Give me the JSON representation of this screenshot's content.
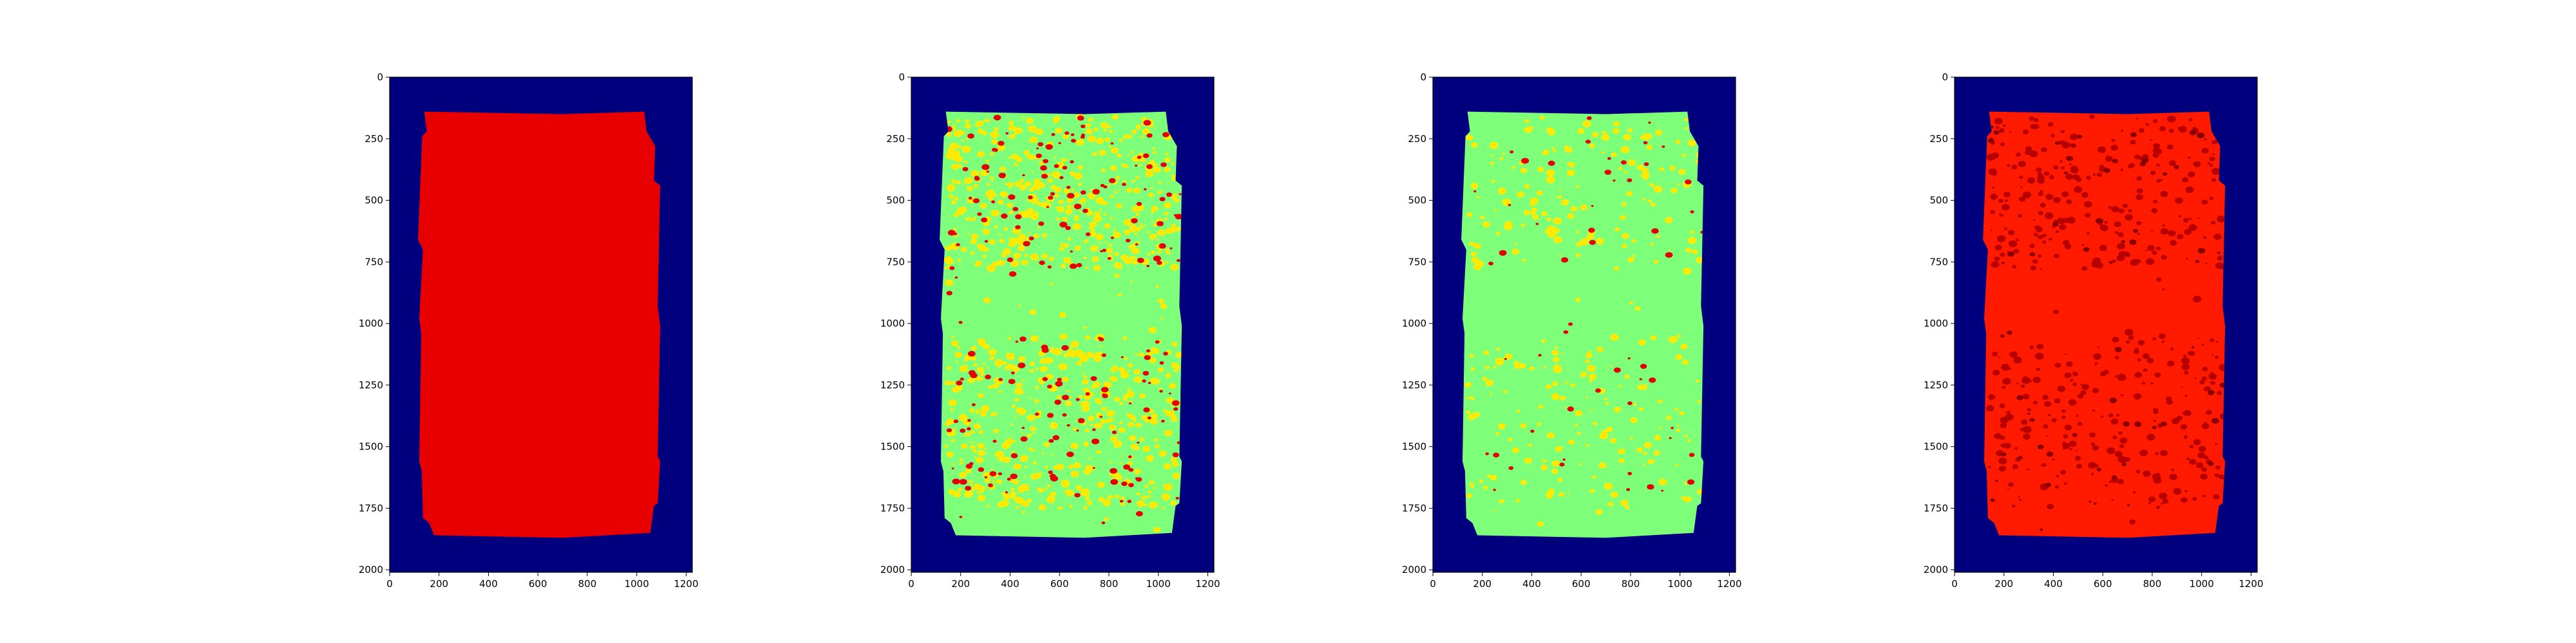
{
  "chart_data": [
    {
      "type": "heatmap",
      "panel": 1,
      "xlim": [
        0,
        1225
      ],
      "ylim": [
        2010,
        0
      ],
      "x_ticks": [
        "0",
        "200",
        "400",
        "600",
        "800",
        "1000",
        "1200"
      ],
      "y_ticks": [
        "0",
        "250",
        "500",
        "750",
        "1000",
        "1250",
        "1500",
        "1750",
        "2000"
      ],
      "background_color": "#00007f",
      "fill_color": "#e80000",
      "blob_color": "#d40000",
      "blob_density": 0,
      "spot_color": "#cc0000",
      "spot_density": 0
    },
    {
      "type": "heatmap",
      "panel": 2,
      "xlim": [
        0,
        1225
      ],
      "ylim": [
        2010,
        0
      ],
      "x_ticks": [
        "0",
        "200",
        "400",
        "600",
        "800",
        "1000",
        "1200"
      ],
      "y_ticks": [
        "0",
        "250",
        "500",
        "750",
        "1000",
        "1250",
        "1500",
        "1750",
        "2000"
      ],
      "background_color": "#00007f",
      "fill_color": "#7dff7a",
      "blob_color": "#ffea00",
      "blob_density": 1.0,
      "spot_color": "#e80000",
      "spot_density": 1.0
    },
    {
      "type": "heatmap",
      "panel": 3,
      "xlim": [
        0,
        1225
      ],
      "ylim": [
        2010,
        0
      ],
      "x_ticks": [
        "0",
        "200",
        "400",
        "600",
        "800",
        "1000",
        "1200"
      ],
      "y_ticks": [
        "0",
        "250",
        "500",
        "750",
        "1000",
        "1250",
        "1500",
        "1750",
        "2000"
      ],
      "background_color": "#00007f",
      "fill_color": "#7dff7a",
      "blob_color": "#ffea00",
      "blob_density": 0.35,
      "spot_color": "#e80000",
      "spot_density": 0.25
    },
    {
      "type": "heatmap",
      "panel": 4,
      "xlim": [
        0,
        1225
      ],
      "ylim": [
        2010,
        0
      ],
      "x_ticks": [
        "0",
        "200",
        "400",
        "600",
        "800",
        "1000",
        "1200"
      ],
      "y_ticks": [
        "0",
        "250",
        "500",
        "750",
        "1000",
        "1250",
        "1500",
        "1750",
        "2000"
      ],
      "background_color": "#00007f",
      "fill_color": "#ff1a00",
      "blob_color": "#b80000",
      "blob_density": 0.55,
      "spot_color": "#8a0000",
      "spot_density": 0.3
    }
  ]
}
